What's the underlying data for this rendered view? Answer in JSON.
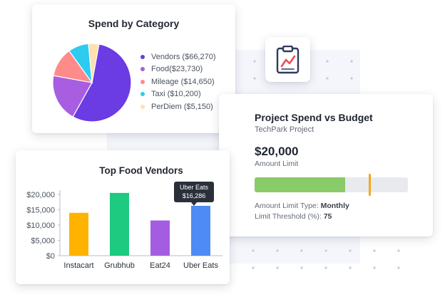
{
  "pie_card": {
    "chart_data": {
      "type": "pie",
      "title": "Spend by Category",
      "legend_position": "right",
      "slices": [
        {
          "label": "Vendors ($66,270)",
          "value": 66270,
          "color": "#6b3be3"
        },
        {
          "label": "Food($23,730)",
          "value": 23730,
          "color": "#a85ee0"
        },
        {
          "label": "Mileage ($14,650)",
          "value": 14650,
          "color": "#ff8a8a"
        },
        {
          "label": "Taxi ($10,200)",
          "value": 10200,
          "color": "#2ecbf0"
        },
        {
          "label": "PerDiem ($5,150)",
          "value": 5150,
          "color": "#ffe0b0"
        }
      ]
    }
  },
  "icon_tile": {
    "icon": "clipboard-chart-icon"
  },
  "budget_card": {
    "title": "Project Spend vs Budget",
    "subtitle": "TechPark Project",
    "amount": "$20,000",
    "amount_label": "Amount Limit",
    "progress": 0.59,
    "threshold": 0.75,
    "fill_color": "#88cb68",
    "marker_color": "#f5a623",
    "limit_type_label": "Amount Limit Type:",
    "limit_type_value": "Monthly",
    "threshold_label": "Limit Threshold (%):",
    "threshold_value": "75"
  },
  "bar_card": {
    "chart_data": {
      "type": "bar",
      "title": "Top Food Vendors",
      "categories": [
        "Instacart",
        "Grubhub",
        "Eat24",
        "Uber Eats"
      ],
      "values": [
        14000,
        20500,
        11500,
        16286
      ],
      "colors": [
        "#ffb300",
        "#1dca80",
        "#a45de0",
        "#4e8bf5"
      ],
      "ylim": [
        0,
        20000
      ],
      "yticks": [
        0,
        5000,
        10000,
        15000,
        20000
      ],
      "ytick_labels": [
        "$0",
        "$5,000",
        "$10,000",
        "$15,000",
        "$20,000"
      ],
      "grid": false
    },
    "tooltip": {
      "line1": "Uber Eats",
      "line2": "$16,286"
    }
  }
}
